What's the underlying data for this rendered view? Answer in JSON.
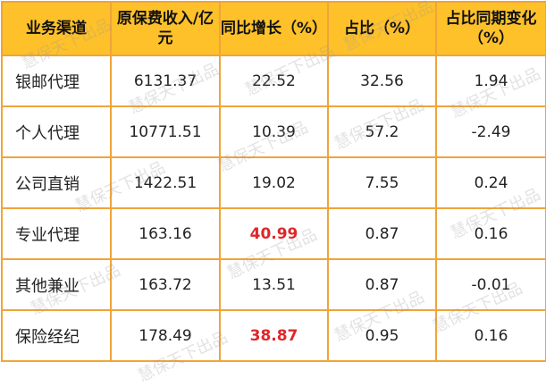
{
  "watermark": "慧保天下出品",
  "colors": {
    "header_bg": "#fec12a",
    "border": "#f0a43a",
    "highlight": "#e0262a"
  },
  "headers": [
    "业务渠道",
    "原保费收入/亿元",
    "同比增长（%）",
    "占比（%）",
    "占比同期变化（%）"
  ],
  "rows": [
    {
      "channel": "银邮代理",
      "premium": "6131.37",
      "growth": "22.52",
      "share": "32.56",
      "share_change": "1.94",
      "growth_highlight": false
    },
    {
      "channel": "个人代理",
      "premium": "10771.51",
      "growth": "10.39",
      "share": "57.2",
      "share_change": "-2.49",
      "growth_highlight": false
    },
    {
      "channel": "公司直销",
      "premium": "1422.51",
      "growth": "19.02",
      "share": "7.55",
      "share_change": "0.24",
      "growth_highlight": false
    },
    {
      "channel": "专业代理",
      "premium": "163.16",
      "growth": "40.99",
      "share": "0.87",
      "share_change": "0.16",
      "growth_highlight": true
    },
    {
      "channel": "其他兼业",
      "premium": "163.72",
      "growth": "13.51",
      "share": "0.87",
      "share_change": "-0.01",
      "growth_highlight": false
    },
    {
      "channel": "保险经纪",
      "premium": "178.49",
      "growth": "38.87",
      "share": "0.95",
      "share_change": "0.16",
      "growth_highlight": true
    }
  ]
}
